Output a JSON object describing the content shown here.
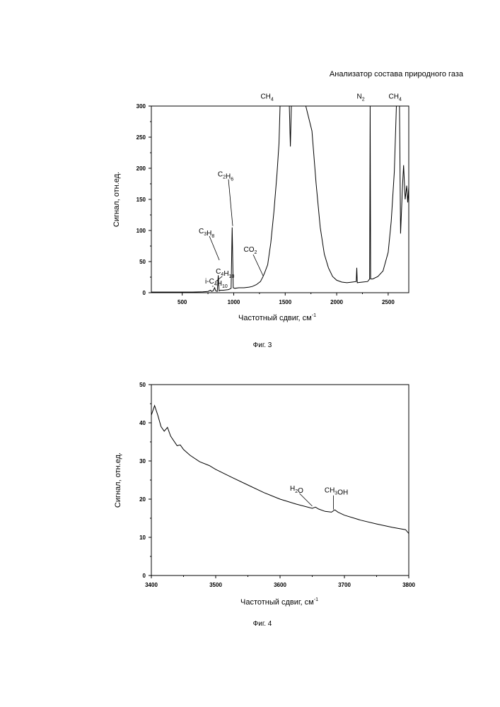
{
  "header": {
    "title": "Анализатор состава природного газа"
  },
  "figures": [
    {
      "caption": "Фиг. 3"
    },
    {
      "caption": "Фиг. 4"
    }
  ],
  "chart_data": [
    {
      "type": "line",
      "title": "",
      "xlabel": "Частотный сдвиг, см",
      "xlabel_sup": "-1",
      "ylabel": "Сигнал, отн.ед.",
      "xlim": [
        200,
        2700
      ],
      "ylim": [
        0,
        300
      ],
      "xticks": [
        500,
        1000,
        1500,
        2000,
        2500
      ],
      "yticks": [
        0,
        50,
        100,
        150,
        200,
        250,
        300
      ],
      "annotations": [
        {
          "text": "i-C4H10",
          "x": 790,
          "y": 8
        },
        {
          "text": "C4H10",
          "x": 820,
          "y": 15
        },
        {
          "text": "C3H8",
          "x": 860,
          "y": 50
        },
        {
          "text": "C2H6",
          "x": 990,
          "y": 105
        },
        {
          "text": "CO2",
          "x": 1285,
          "y": 25
        },
        {
          "text": "CH4",
          "x": 1530,
          "y": 280
        },
        {
          "text": "N2",
          "x": 2330,
          "y": 280
        },
        {
          "text": "CH4",
          "x": 2650,
          "y": 280
        }
      ],
      "series": [
        {
          "values": [
            [
              200,
              1
            ],
            [
              600,
              1
            ],
            [
              700,
              1.5
            ],
            [
              750,
              2
            ],
            [
              775,
              4
            ],
            [
              785,
              2
            ],
            [
              800,
              3
            ],
            [
              815,
              8
            ],
            [
              825,
              3
            ],
            [
              840,
              2
            ],
            [
              850,
              28
            ],
            [
              858,
              3
            ],
            [
              870,
              4
            ],
            [
              900,
              4
            ],
            [
              950,
              5
            ],
            [
              975,
              7
            ],
            [
              985,
              105
            ],
            [
              995,
              8
            ],
            [
              1010,
              7
            ],
            [
              1050,
              8
            ],
            [
              1100,
              8
            ],
            [
              1150,
              9
            ],
            [
              1180,
              10
            ],
            [
              1220,
              13
            ],
            [
              1260,
              18
            ],
            [
              1285,
              26
            ],
            [
              1300,
              32
            ],
            [
              1330,
              45
            ],
            [
              1360,
              80
            ],
            [
              1390,
              130
            ],
            [
              1420,
              190
            ],
            [
              1440,
              240
            ],
            [
              1450,
              300
            ],
            [
              1540,
              300
            ],
            [
              1550,
              235
            ],
            [
              1560,
              300
            ],
            [
              1650,
              300
            ],
            [
              1700,
              300
            ],
            [
              1760,
              260
            ],
            [
              1800,
              175
            ],
            [
              1840,
              105
            ],
            [
              1880,
              62
            ],
            [
              1920,
              40
            ],
            [
              1960,
              26
            ],
            [
              2000,
              20
            ],
            [
              2050,
              17
            ],
            [
              2100,
              16
            ],
            [
              2150,
              17
            ],
            [
              2190,
              18
            ],
            [
              2195,
              40
            ],
            [
              2200,
              16
            ],
            [
              2250,
              17
            ],
            [
              2300,
              18
            ],
            [
              2320,
              22
            ],
            [
              2325,
              300
            ],
            [
              2330,
              22
            ],
            [
              2350,
              22
            ],
            [
              2400,
              26
            ],
            [
              2450,
              35
            ],
            [
              2500,
              65
            ],
            [
              2530,
              115
            ],
            [
              2560,
              195
            ],
            [
              2580,
              300
            ],
            [
              2610,
              300
            ],
            [
              2620,
              95
            ],
            [
              2640,
              175
            ],
            [
              2650,
              205
            ],
            [
              2665,
              150
            ],
            [
              2680,
              172
            ],
            [
              2690,
              145
            ],
            [
              2700,
              170
            ]
          ]
        }
      ]
    },
    {
      "type": "line",
      "title": "",
      "xlabel": "Частотный сдвиг, см",
      "xlabel_sup": "-1",
      "ylabel": "Сигнал, отн.ед.",
      "xlim": [
        3400,
        3800
      ],
      "ylim": [
        0,
        50
      ],
      "xticks": [
        3400,
        3500,
        3600,
        3700,
        3800
      ],
      "yticks": [
        0,
        10,
        20,
        30,
        40,
        50
      ],
      "annotations": [
        {
          "text": "H2O",
          "x": 3650,
          "y": 17.8
        },
        {
          "text": "CH3OH",
          "x": 3683,
          "y": 16.9
        }
      ],
      "series": [
        {
          "values": [
            [
              3400,
              42
            ],
            [
              3405,
              44.5
            ],
            [
              3410,
              42
            ],
            [
              3415,
              39
            ],
            [
              3420,
              37.8
            ],
            [
              3425,
              38.8
            ],
            [
              3430,
              36.5
            ],
            [
              3440,
              34
            ],
            [
              3445,
              34.2
            ],
            [
              3450,
              33
            ],
            [
              3460,
              31.5
            ],
            [
              3475,
              29.8
            ],
            [
              3490,
              28.8
            ],
            [
              3500,
              27.8
            ],
            [
              3525,
              25.7
            ],
            [
              3550,
              23.7
            ],
            [
              3575,
              21.7
            ],
            [
              3600,
              20
            ],
            [
              3625,
              18.7
            ],
            [
              3650,
              17.6
            ],
            [
              3655,
              17.9
            ],
            [
              3660,
              17.4
            ],
            [
              3670,
              16.8
            ],
            [
              3680,
              16.6
            ],
            [
              3685,
              17.2
            ],
            [
              3690,
              16.6
            ],
            [
              3700,
              15.8
            ],
            [
              3725,
              14.5
            ],
            [
              3750,
              13.5
            ],
            [
              3775,
              12.6
            ],
            [
              3795,
              12
            ],
            [
              3800,
              11
            ]
          ]
        }
      ]
    }
  ]
}
